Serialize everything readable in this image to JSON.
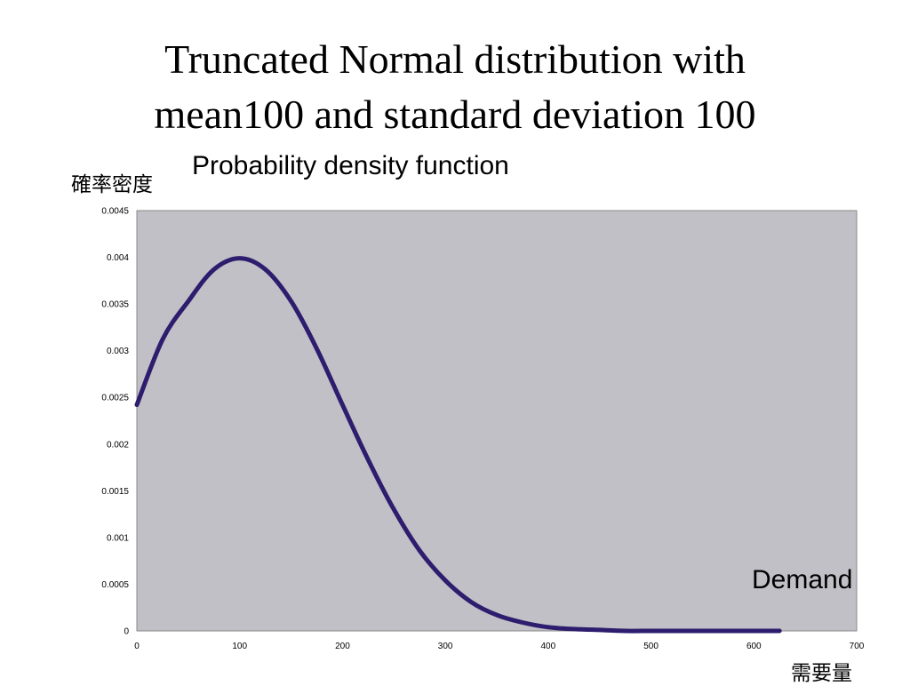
{
  "slide": {
    "title_line1": "Truncated Normal distribution with",
    "title_line2": "mean100 and standard deviation 100",
    "subtitle": "Probability density function",
    "y_axis_label": "確率密度",
    "x_axis_label": "需要量",
    "x_annotation": "Demand"
  },
  "chart_data": {
    "type": "line",
    "title": "Truncated Normal distribution with mean100 and standard deviation 100",
    "subtitle": "Probability density function",
    "xlabel": "需要量",
    "ylabel": "確率密度",
    "annotations": [
      "Demand"
    ],
    "xlim": [
      0,
      700
    ],
    "ylim": [
      0,
      0.0045
    ],
    "x_ticks": [
      "0",
      "100",
      "200",
      "300",
      "400",
      "500",
      "600",
      "700"
    ],
    "y_ticks": [
      "0",
      "0.0005",
      "0.001",
      "0.0015",
      "0.002",
      "0.0025",
      "0.003",
      "0.0035",
      "0.004",
      "0.0045"
    ],
    "grid": false,
    "background_color": "#c0c0c6",
    "line_color": "#2e1d6e",
    "series": [
      {
        "x": [
          0,
          25,
          50,
          75,
          100,
          125,
          150,
          175,
          200,
          225,
          250,
          275,
          300,
          325,
          350,
          375,
          400,
          425,
          450,
          475,
          500,
          525,
          550,
          575,
          600,
          625
        ],
        "values": [
          0.00242,
          0.00312,
          0.00353,
          0.00387,
          0.00399,
          0.00387,
          0.00353,
          0.00302,
          0.00242,
          0.00183,
          0.0013,
          0.00086,
          0.00054,
          0.00031,
          0.00017,
          9e-05,
          4e-05,
          2e-05,
          1e-05,
          0.0,
          0.0,
          0.0,
          0.0,
          0.0,
          0.0,
          0.0
        ]
      }
    ]
  }
}
